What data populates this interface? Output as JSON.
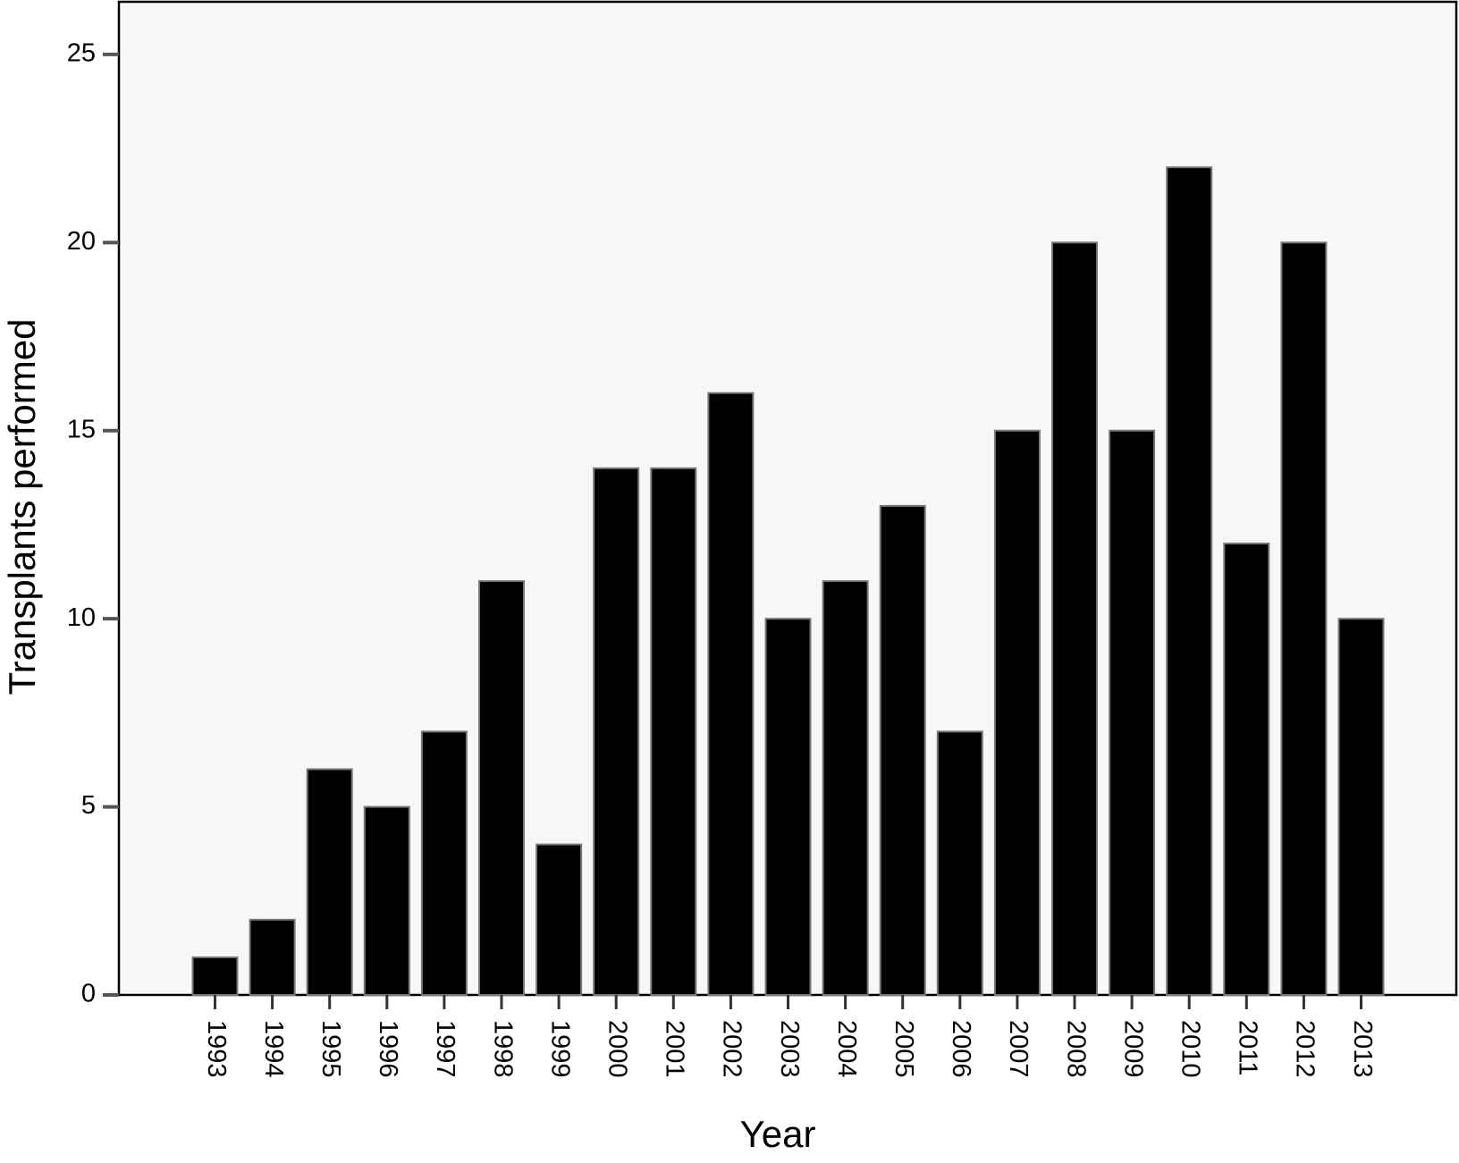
{
  "chart_data": {
    "type": "bar",
    "x_label": "Year",
    "y_label": "Transplants performed",
    "categories": [
      "1993",
      "1994",
      "1995",
      "1996",
      "1997",
      "1998",
      "1999",
      "2000",
      "2001",
      "2002",
      "2003",
      "2004",
      "2005",
      "2006",
      "2007",
      "2008",
      "2009",
      "2010",
      "2011",
      "2012",
      "2013"
    ],
    "values": [
      1,
      2,
      6,
      5,
      7,
      11,
      4,
      14,
      14,
      16,
      10,
      11,
      13,
      7,
      15,
      20,
      15,
      22,
      12,
      20,
      10
    ],
    "color": "#000000",
    "ylim": [
      0,
      26.4
    ],
    "yticks": [
      0,
      5,
      10,
      15,
      20,
      25
    ]
  }
}
